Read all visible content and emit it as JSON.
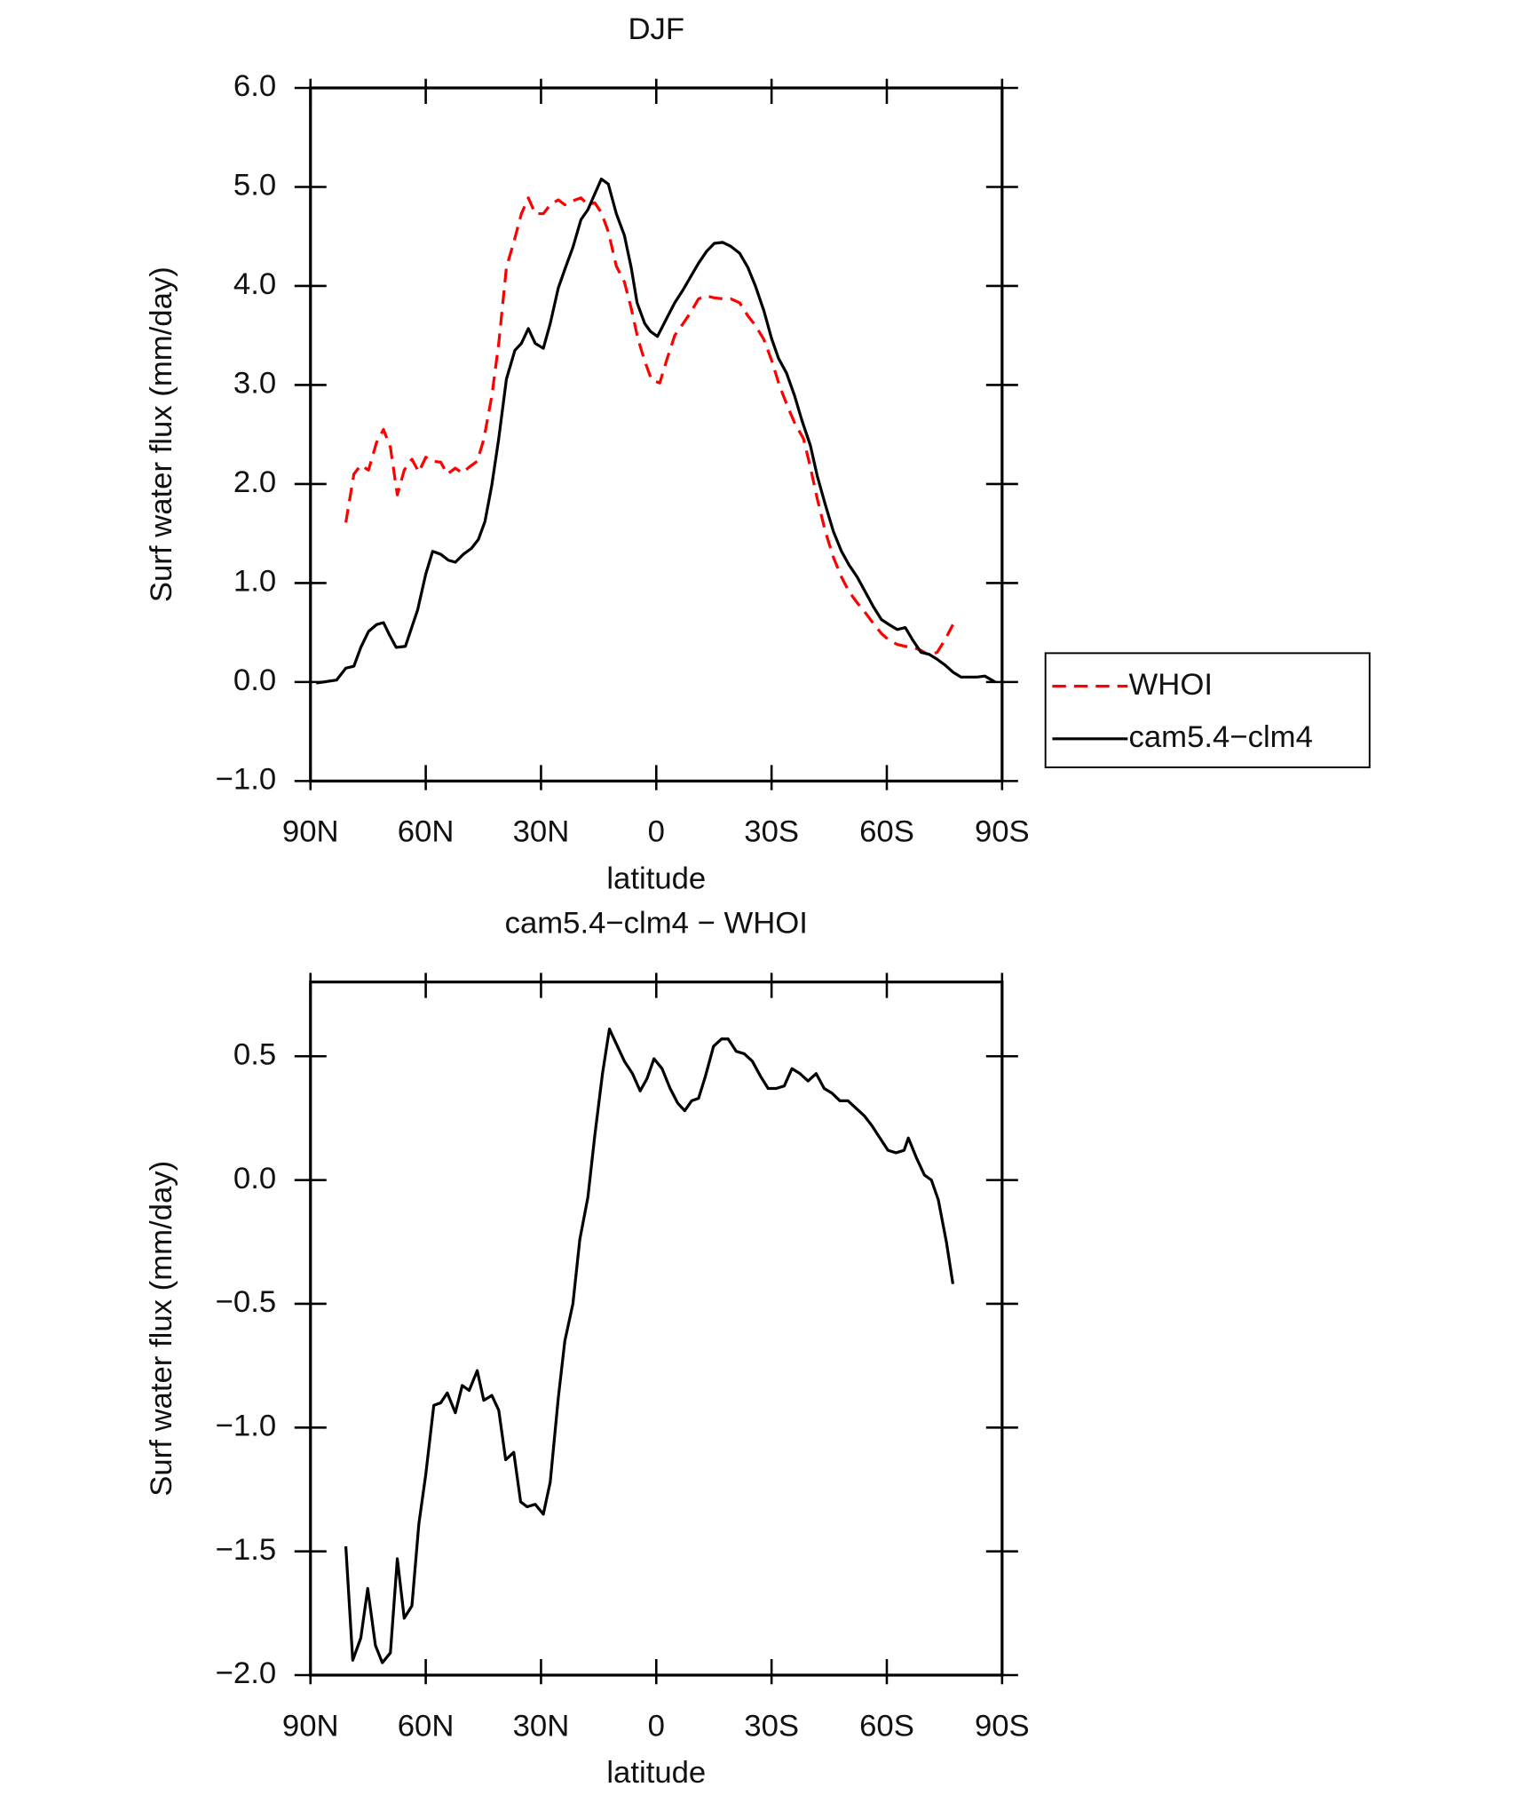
{
  "chart_data": [
    {
      "type": "line",
      "title": "DJF",
      "xlabel": "latitude",
      "ylabel": "Surf water flux (mm/day)",
      "xlim": [
        90,
        -90
      ],
      "xticks": [
        {
          "value": 90,
          "label": "90N"
        },
        {
          "value": 60,
          "label": "60N"
        },
        {
          "value": 30,
          "label": "30N"
        },
        0,
        {
          "value": -30,
          "label": "30S"
        },
        {
          "value": -60,
          "label": "60S"
        },
        {
          "value": -90,
          "label": "90S"
        }
      ],
      "ylim": [
        -1,
        6
      ],
      "yticks": [
        {
          "value": 6,
          "label": "6.0"
        },
        {
          "value": 5,
          "label": "5.0"
        },
        {
          "value": 4,
          "label": "4.0"
        },
        {
          "value": 3,
          "label": "3.0"
        },
        {
          "value": 2,
          "label": "2.0"
        },
        {
          "value": 1,
          "label": "1.0"
        },
        {
          "value": 0,
          "label": "0.0"
        },
        {
          "value": -1,
          "label": "−1.0"
        }
      ],
      "legend": "outside right",
      "series": [
        {
          "name": "WHOI",
          "color": "#ff0000",
          "line_style": "dashed",
          "x": [
            80.8,
            78.7,
            76.9,
            74.9,
            72.8,
            71.0,
            69.2,
            67.4,
            65.6,
            63.6,
            61.8,
            60.0,
            58.2,
            56.1,
            54.4,
            52.3,
            50.5,
            48.7,
            46.6,
            44.9,
            42.8,
            41.0,
            39.0,
            37.1,
            35.1,
            33.3,
            31.5,
            29.4,
            27.6,
            25.5,
            23.8,
            21.7,
            19.6,
            17.8,
            16.0,
            14.3,
            12.5,
            10.4,
            8.3,
            6.5,
            4.8,
            3.0,
            1.2,
            -0.9,
            -2.7,
            -4.8,
            -6.8,
            -8.9,
            -11.0,
            -13.1,
            -15.1,
            -17.3,
            -19.4,
            -21.7,
            -23.8,
            -25.8,
            -28.0,
            -30.0,
            -32.1,
            -34.2,
            -36.2,
            -38.3,
            -40.1,
            -41.9,
            -44.0,
            -46.1,
            -48.2,
            -50.2,
            -52.3,
            -54.4,
            -56.5,
            -58.6,
            -60.6,
            -62.7,
            -64.8,
            -66.8,
            -68.9,
            -71.0,
            -73.1,
            -75.2,
            -77.2
          ],
          "values": [
            1.61,
            2.1,
            2.19,
            2.14,
            2.42,
            2.55,
            2.37,
            1.89,
            2.14,
            2.25,
            2.12,
            2.27,
            2.23,
            2.22,
            2.1,
            2.16,
            2.11,
            2.17,
            2.23,
            2.45,
            2.89,
            3.42,
            4.19,
            4.44,
            4.73,
            4.89,
            4.73,
            4.73,
            4.82,
            4.87,
            4.82,
            4.86,
            4.89,
            4.82,
            4.84,
            4.74,
            4.55,
            4.2,
            4.04,
            3.77,
            3.47,
            3.24,
            3.05,
            3.02,
            3.25,
            3.5,
            3.61,
            3.73,
            3.87,
            3.9,
            3.88,
            3.87,
            3.87,
            3.83,
            3.7,
            3.6,
            3.46,
            3.25,
            2.99,
            2.78,
            2.6,
            2.46,
            2.17,
            1.85,
            1.52,
            1.26,
            1.06,
            0.91,
            0.8,
            0.7,
            0.59,
            0.49,
            0.42,
            0.38,
            0.36,
            0.35,
            0.32,
            0.27,
            0.3,
            0.43,
            0.58
          ]
        },
        {
          "name": "cam5.4−clm4",
          "color": "#000000",
          "line_style": "solid",
          "x": [
            88.5,
            83.2,
            80.8,
            78.7,
            76.9,
            74.9,
            72.8,
            71.0,
            69.5,
            67.7,
            65.3,
            62.1,
            60.0,
            58.2,
            56.1,
            54.1,
            52.3,
            50.2,
            48.1,
            46.3,
            44.6,
            42.8,
            41.0,
            39.0,
            36.8,
            35.1,
            33.3,
            31.5,
            29.4,
            27.6,
            25.5,
            23.5,
            21.7,
            19.6,
            17.8,
            16.0,
            14.3,
            12.5,
            10.4,
            8.3,
            6.5,
            5.0,
            3.0,
            1.5,
            -0.3,
            -2.4,
            -4.8,
            -6.8,
            -8.9,
            -11.0,
            -13.1,
            -15.1,
            -17.3,
            -19.4,
            -21.7,
            -23.8,
            -25.8,
            -28.0,
            -30.0,
            -31.8,
            -33.9,
            -36.0,
            -38.0,
            -40.1,
            -41.9,
            -44.0,
            -46.1,
            -48.2,
            -50.2,
            -52.3,
            -54.4,
            -56.5,
            -58.6,
            -60.6,
            -62.7,
            -64.8,
            -66.8,
            -68.9,
            -71.0,
            -73.1,
            -75.2,
            -77.2,
            -79.3,
            -81.4,
            -83.5,
            -85.5,
            -88.2
          ],
          "values": [
            -0.01,
            0.02,
            0.14,
            0.16,
            0.35,
            0.51,
            0.58,
            0.6,
            0.48,
            0.35,
            0.36,
            0.73,
            1.09,
            1.32,
            1.29,
            1.23,
            1.21,
            1.29,
            1.35,
            1.44,
            1.62,
            1.99,
            2.46,
            3.06,
            3.35,
            3.42,
            3.57,
            3.42,
            3.37,
            3.62,
            3.98,
            4.2,
            4.39,
            4.67,
            4.77,
            4.93,
            5.08,
            5.03,
            4.73,
            4.51,
            4.18,
            3.83,
            3.62,
            3.54,
            3.49,
            3.65,
            3.83,
            3.95,
            4.09,
            4.23,
            4.35,
            4.43,
            4.44,
            4.4,
            4.33,
            4.19,
            4.0,
            3.75,
            3.47,
            3.27,
            3.12,
            2.89,
            2.63,
            2.39,
            2.08,
            1.79,
            1.52,
            1.32,
            1.18,
            1.06,
            0.91,
            0.76,
            0.63,
            0.58,
            0.53,
            0.55,
            0.42,
            0.3,
            0.28,
            0.23,
            0.17,
            0.1,
            0.05,
            0.05,
            0.05,
            0.06,
            0.0
          ]
        }
      ]
    },
    {
      "type": "line",
      "title": "cam5.4−clm4 − WHOI",
      "xlabel": "latitude",
      "ylabel": "Surf water flux (mm/day)",
      "xlim": [
        90,
        -90
      ],
      "xticks": [
        {
          "value": 90,
          "label": "90N"
        },
        {
          "value": 60,
          "label": "60N"
        },
        {
          "value": 30,
          "label": "30N"
        },
        0,
        {
          "value": -30,
          "label": "30S"
        },
        {
          "value": -60,
          "label": "60S"
        },
        {
          "value": -90,
          "label": "90S"
        }
      ],
      "ylim": [
        -2,
        0.8
      ],
      "yticks": [
        0.5,
        {
          "value": 0,
          "label": "0.0"
        },
        {
          "value": -0.5,
          "label": "−0.5"
        },
        {
          "value": -1,
          "label": "−1.0"
        },
        {
          "value": -1.5,
          "label": "−1.5"
        },
        {
          "value": -2,
          "label": "−2.0"
        }
      ],
      "color": "#000000",
      "x": [
        80.8,
        79.0,
        76.9,
        75.1,
        73.1,
        71.3,
        69.2,
        67.4,
        65.6,
        63.6,
        61.8,
        60.0,
        57.9,
        56.1,
        54.4,
        52.3,
        50.5,
        48.7,
        46.6,
        44.9,
        42.8,
        41.0,
        39.2,
        37.1,
        35.3,
        33.6,
        31.5,
        29.4,
        27.6,
        25.5,
        23.8,
        21.7,
        19.9,
        17.8,
        16.0,
        14.0,
        12.2,
        10.4,
        8.3,
        6.2,
        4.2,
        2.4,
        0.6,
        -1.5,
        -3.6,
        -5.6,
        -7.4,
        -9.2,
        -11.0,
        -12.8,
        -14.9,
        -17.0,
        -18.7,
        -20.8,
        -22.9,
        -25.0,
        -27.1,
        -29.1,
        -31.2,
        -33.3,
        -35.3,
        -37.4,
        -39.5,
        -41.6,
        -43.7,
        -45.8,
        -47.8,
        -49.9,
        -52.0,
        -54.1,
        -56.1,
        -58.2,
        -60.3,
        -62.4,
        -64.5,
        -65.6,
        -67.7,
        -69.8,
        -71.6,
        -73.4,
        -75.5,
        -77.2
      ],
      "values": [
        -1.48,
        -1.94,
        -1.85,
        -1.65,
        -1.88,
        -1.95,
        -1.91,
        -1.53,
        -1.77,
        -1.72,
        -1.39,
        -1.19,
        -0.91,
        -0.9,
        -0.86,
        -0.94,
        -0.83,
        -0.85,
        -0.77,
        -0.89,
        -0.87,
        -0.93,
        -1.13,
        -1.1,
        -1.3,
        -1.32,
        -1.31,
        -1.35,
        -1.22,
        -0.88,
        -0.65,
        -0.5,
        -0.24,
        -0.07,
        0.18,
        0.43,
        0.61,
        0.55,
        0.48,
        0.43,
        0.36,
        0.41,
        0.49,
        0.45,
        0.37,
        0.31,
        0.28,
        0.32,
        0.33,
        0.42,
        0.54,
        0.57,
        0.57,
        0.52,
        0.51,
        0.48,
        0.42,
        0.37,
        0.37,
        0.38,
        0.45,
        0.43,
        0.4,
        0.43,
        0.37,
        0.35,
        0.32,
        0.32,
        0.29,
        0.26,
        0.22,
        0.17,
        0.12,
        0.11,
        0.12,
        0.17,
        0.09,
        0.02,
        0.0,
        -0.08,
        -0.25,
        -0.42
      ]
    }
  ]
}
